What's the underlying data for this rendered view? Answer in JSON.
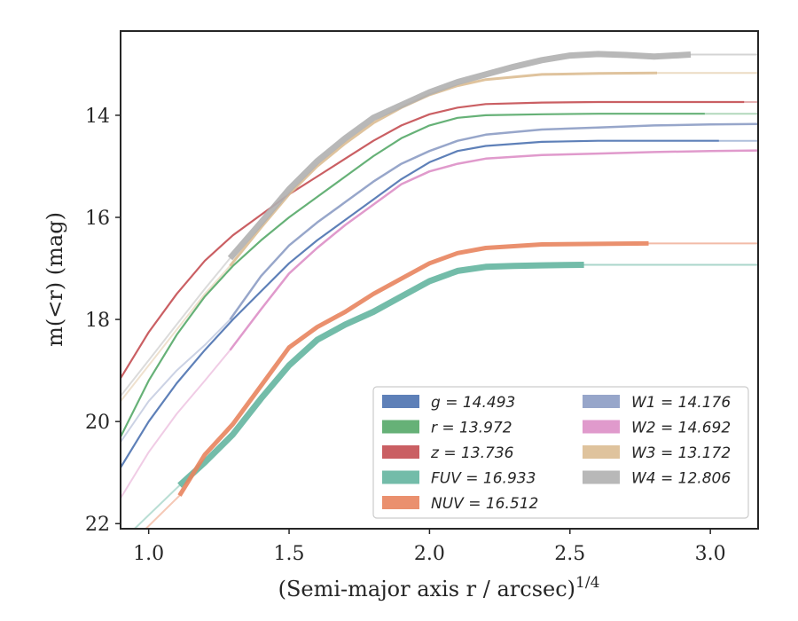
{
  "chart_data": {
    "type": "line",
    "xlabel": "(Semi-major axis r / arcsec)",
    "xlabel_exponent": "1/4",
    "ylabel": "m(<r) (mag)",
    "xlim": [
      0.9,
      3.17
    ],
    "ylim": [
      22.1,
      12.35
    ],
    "y_inverted": true,
    "x_ticks": [
      "1.0",
      "1.5",
      "2.0",
      "2.5",
      "3.0"
    ],
    "y_ticks": [
      "14",
      "16",
      "18",
      "20",
      "22"
    ],
    "grid": false,
    "legend_position": "bottom-right",
    "series": [
      {
        "name": "g",
        "label": "g = 14.493",
        "band": "g",
        "value": "14.493",
        "color": "#4c72b0",
        "x": [
          0.9,
          1.0,
          1.1,
          1.2,
          1.3,
          1.4,
          1.5,
          1.6,
          1.7,
          1.8,
          1.9,
          2.0,
          2.1,
          2.2,
          2.4,
          2.6,
          2.8,
          3.03
        ],
        "y": [
          20.9,
          20.0,
          19.25,
          18.6,
          18.0,
          17.45,
          16.9,
          16.45,
          16.05,
          15.65,
          15.25,
          14.92,
          14.7,
          14.6,
          14.52,
          14.5,
          14.5,
          14.5
        ],
        "ext_x": [
          3.03,
          3.17
        ],
        "ext_y": [
          14.5,
          14.5
        ],
        "width": 2.2
      },
      {
        "name": "r",
        "label": "r = 13.972",
        "band": "r",
        "value": "13.972",
        "color": "#55a868",
        "x": [
          0.9,
          1.0,
          1.1,
          1.2,
          1.3,
          1.4,
          1.5,
          1.6,
          1.7,
          1.8,
          1.9,
          2.0,
          2.1,
          2.2,
          2.4,
          2.6,
          2.8,
          2.98
        ],
        "y": [
          20.3,
          19.2,
          18.3,
          17.55,
          16.95,
          16.45,
          16.0,
          15.6,
          15.2,
          14.8,
          14.45,
          14.2,
          14.05,
          14.0,
          13.98,
          13.97,
          13.97,
          13.97
        ],
        "ext_x": [
          2.98,
          3.17
        ],
        "ext_y": [
          13.97,
          13.97
        ],
        "width": 2.2
      },
      {
        "name": "z",
        "label": "z = 13.736",
        "band": "z",
        "value": "13.736",
        "color": "#c44e52",
        "x": [
          0.9,
          1.0,
          1.1,
          1.2,
          1.3,
          1.4,
          1.5,
          1.6,
          1.7,
          1.8,
          1.9,
          2.0,
          2.1,
          2.2,
          2.4,
          2.6,
          2.8,
          3.12
        ],
        "y": [
          19.15,
          18.25,
          17.5,
          16.85,
          16.35,
          15.95,
          15.55,
          15.2,
          14.85,
          14.5,
          14.2,
          13.98,
          13.85,
          13.78,
          13.75,
          13.74,
          13.74,
          13.74
        ],
        "ext_x": [
          3.12,
          3.17
        ],
        "ext_y": [
          13.74,
          13.74
        ],
        "width": 2.2
      },
      {
        "name": "FUV",
        "label": "FUV = 16.933",
        "band": "FUV",
        "value": "16.933",
        "color": "#64b5a0",
        "x": [
          1.11,
          1.2,
          1.3,
          1.4,
          1.5,
          1.6,
          1.7,
          1.8,
          1.9,
          2.0,
          2.1,
          2.2,
          2.3,
          2.4,
          2.55
        ],
        "y": [
          21.25,
          20.8,
          20.25,
          19.55,
          18.9,
          18.4,
          18.1,
          17.85,
          17.55,
          17.25,
          17.05,
          16.97,
          16.95,
          16.94,
          16.93
        ],
        "ext_x": [
          0.95,
          1.11
        ],
        "ext_y": [
          22.1,
          21.25
        ],
        "ext2_x": [
          2.55,
          3.17
        ],
        "ext2_y": [
          16.93,
          16.93
        ],
        "width": 7
      },
      {
        "name": "NUV",
        "label": "NUV = 16.512",
        "band": "NUV",
        "value": "16.512",
        "color": "#e8845e",
        "x": [
          1.11,
          1.2,
          1.3,
          1.4,
          1.5,
          1.6,
          1.7,
          1.8,
          1.9,
          2.0,
          2.1,
          2.2,
          2.4,
          2.6,
          2.78
        ],
        "y": [
          21.45,
          20.65,
          20.05,
          19.3,
          18.55,
          18.15,
          17.85,
          17.5,
          17.2,
          16.9,
          16.7,
          16.6,
          16.53,
          16.52,
          16.51
        ],
        "ext_x": [
          0.99,
          1.11
        ],
        "ext_y": [
          22.1,
          21.45
        ],
        "ext2_x": [
          2.78,
          3.17
        ],
        "ext2_y": [
          16.51,
          16.51
        ],
        "width": 5
      },
      {
        "name": "W1",
        "label": "W1 = 14.176",
        "band": "W1",
        "value": "14.176",
        "color": "#8c9cc4",
        "x": [
          1.29,
          1.4,
          1.5,
          1.6,
          1.7,
          1.8,
          1.9,
          2.0,
          2.1,
          2.2,
          2.4,
          2.6,
          2.8,
          3.0,
          3.17
        ],
        "y": [
          18.0,
          17.15,
          16.55,
          16.1,
          15.7,
          15.3,
          14.95,
          14.7,
          14.5,
          14.38,
          14.28,
          14.24,
          14.2,
          14.18,
          14.17
        ],
        "ext_x": [
          0.9,
          1.0,
          1.1,
          1.2,
          1.29
        ],
        "ext_y": [
          20.4,
          19.6,
          19.0,
          18.5,
          18.0
        ],
        "width": 2.5
      },
      {
        "name": "W2",
        "label": "W2 = 14.692",
        "band": "W2",
        "value": "14.692",
        "color": "#dd8fc6",
        "x": [
          1.29,
          1.4,
          1.5,
          1.6,
          1.7,
          1.8,
          1.9,
          2.0,
          2.1,
          2.2,
          2.4,
          2.6,
          2.8,
          3.0,
          3.17
        ],
        "y": [
          18.6,
          17.8,
          17.1,
          16.6,
          16.15,
          15.75,
          15.35,
          15.1,
          14.95,
          14.85,
          14.78,
          14.75,
          14.72,
          14.7,
          14.69
        ],
        "ext_x": [
          0.9,
          1.0,
          1.1,
          1.2,
          1.29
        ],
        "ext_y": [
          21.5,
          20.6,
          19.85,
          19.2,
          18.6
        ],
        "width": 2.5
      },
      {
        "name": "W3",
        "label": "W3 = 13.172",
        "band": "W3",
        "value": "13.172",
        "color": "#dcbd92",
        "x": [
          1.29,
          1.4,
          1.5,
          1.6,
          1.7,
          1.8,
          1.9,
          2.0,
          2.1,
          2.2,
          2.4,
          2.6,
          2.81
        ],
        "y": [
          16.95,
          16.2,
          15.55,
          15.0,
          14.55,
          14.15,
          13.85,
          13.6,
          13.42,
          13.3,
          13.2,
          13.18,
          13.17
        ],
        "ext_x": [
          0.9,
          1.0,
          1.1,
          1.2,
          1.29
        ],
        "ext_y": [
          19.6,
          18.9,
          18.2,
          17.5,
          16.95
        ],
        "ext2_x": [
          2.81,
          3.17
        ],
        "ext2_y": [
          13.17,
          13.17
        ],
        "width": 3
      },
      {
        "name": "W4",
        "label": "W4 = 12.806",
        "band": "W4",
        "value": "12.806",
        "color": "#b0b0b0",
        "x": [
          1.29,
          1.4,
          1.5,
          1.6,
          1.7,
          1.8,
          1.9,
          2.0,
          2.1,
          2.2,
          2.3,
          2.4,
          2.5,
          2.6,
          2.7,
          2.8,
          2.93
        ],
        "y": [
          16.8,
          16.1,
          15.45,
          14.9,
          14.45,
          14.05,
          13.8,
          13.55,
          13.35,
          13.2,
          13.05,
          12.92,
          12.83,
          12.8,
          12.82,
          12.85,
          12.81
        ],
        "ext_x": [
          0.9,
          1.0,
          1.1,
          1.2,
          1.29
        ],
        "ext_y": [
          19.5,
          18.8,
          18.1,
          17.4,
          16.8
        ],
        "ext2_x": [
          2.93,
          3.17
        ],
        "ext2_y": [
          12.81,
          12.81
        ],
        "width": 7
      }
    ]
  }
}
